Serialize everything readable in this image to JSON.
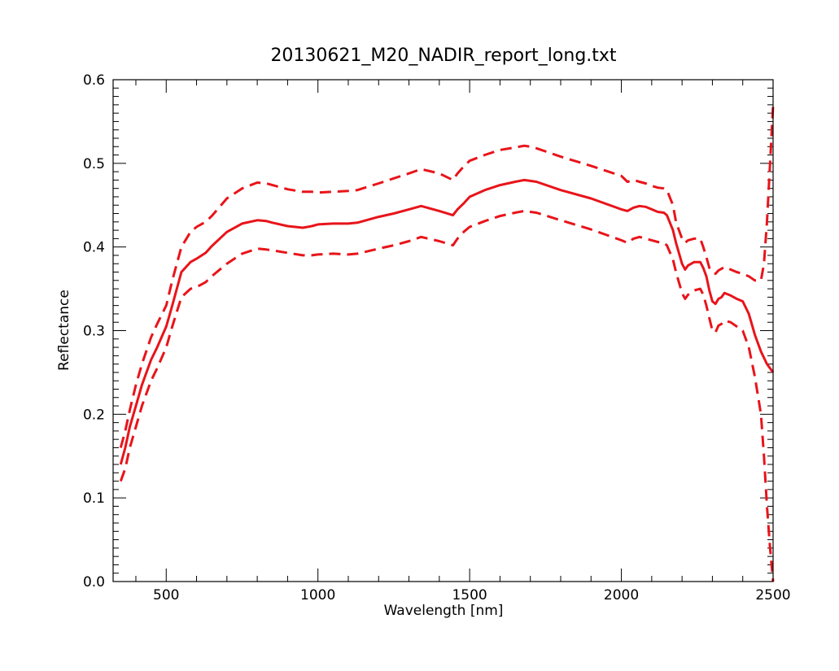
{
  "chart_data": {
    "type": "line",
    "title": "20130621_M20_NADIR_report_long.txt",
    "xlabel": "Wavelength [nm]",
    "ylabel": "Reflectance",
    "xlim": [
      325,
      2500
    ],
    "ylim": [
      0.0,
      0.6
    ],
    "x_ticks": [
      500,
      1000,
      1500,
      2000,
      2500
    ],
    "x_tick_labels": [
      "500",
      "1000",
      "1500",
      "2000",
      "2500"
    ],
    "y_ticks": [
      0.0,
      0.1,
      0.2,
      0.3,
      0.4,
      0.5,
      0.6
    ],
    "y_tick_labels": [
      "0.0",
      "0.1",
      "0.2",
      "0.3",
      "0.4",
      "0.5",
      "0.6"
    ],
    "grid": false,
    "line_color": "#e8141a",
    "series": [
      {
        "style": "solid",
        "x": [
          350,
          365,
          380,
          400,
          420,
          450,
          470,
          500,
          520,
          550,
          580,
          600,
          630,
          650,
          700,
          750,
          800,
          830,
          850,
          900,
          950,
          980,
          1000,
          1050,
          1100,
          1130,
          1200,
          1250,
          1300,
          1340,
          1400,
          1445,
          1460,
          1480,
          1500,
          1550,
          1600,
          1650,
          1680,
          1700,
          1720,
          1800,
          1900,
          2000,
          2020,
          2040,
          2060,
          2080,
          2100,
          2120,
          2140,
          2150,
          2170,
          2180,
          2200,
          2210,
          2220,
          2240,
          2260,
          2270,
          2280,
          2290,
          2300,
          2310,
          2320,
          2330,
          2340,
          2360,
          2380,
          2400,
          2420,
          2440,
          2460,
          2480,
          2500
        ],
        "y": [
          0.14,
          0.16,
          0.185,
          0.21,
          0.235,
          0.265,
          0.28,
          0.305,
          0.33,
          0.37,
          0.382,
          0.386,
          0.393,
          0.401,
          0.418,
          0.428,
          0.432,
          0.431,
          0.429,
          0.425,
          0.423,
          0.425,
          0.427,
          0.428,
          0.428,
          0.429,
          0.436,
          0.44,
          0.445,
          0.449,
          0.443,
          0.438,
          0.445,
          0.452,
          0.46,
          0.468,
          0.474,
          0.478,
          0.48,
          0.479,
          0.478,
          0.468,
          0.458,
          0.445,
          0.443,
          0.447,
          0.449,
          0.448,
          0.445,
          0.442,
          0.441,
          0.438,
          0.42,
          0.405,
          0.38,
          0.373,
          0.378,
          0.382,
          0.382,
          0.375,
          0.365,
          0.348,
          0.335,
          0.332,
          0.338,
          0.34,
          0.345,
          0.342,
          0.338,
          0.335,
          0.32,
          0.295,
          0.275,
          0.26,
          0.25
        ]
      },
      {
        "style": "dashed",
        "x": [
          350,
          365,
          380,
          400,
          420,
          450,
          470,
          500,
          520,
          550,
          580,
          600,
          630,
          650,
          700,
          750,
          800,
          830,
          850,
          900,
          950,
          980,
          1000,
          1050,
          1100,
          1130,
          1200,
          1250,
          1300,
          1340,
          1400,
          1445,
          1460,
          1480,
          1500,
          1550,
          1600,
          1650,
          1680,
          1700,
          1720,
          1800,
          1900,
          2000,
          2020,
          2040,
          2060,
          2080,
          2100,
          2120,
          2140,
          2150,
          2170,
          2180,
          2200,
          2210,
          2220,
          2240,
          2260,
          2270,
          2280,
          2290,
          2300,
          2310,
          2320,
          2330,
          2340,
          2360,
          2380,
          2400,
          2420,
          2440,
          2460,
          2470,
          2480,
          2490,
          2500
        ],
        "y": [
          0.16,
          0.18,
          0.205,
          0.235,
          0.26,
          0.292,
          0.308,
          0.33,
          0.36,
          0.4,
          0.418,
          0.424,
          0.43,
          0.437,
          0.458,
          0.47,
          0.477,
          0.476,
          0.474,
          0.469,
          0.466,
          0.466,
          0.465,
          0.466,
          0.467,
          0.468,
          0.476,
          0.482,
          0.488,
          0.493,
          0.488,
          0.48,
          0.488,
          0.496,
          0.503,
          0.51,
          0.516,
          0.519,
          0.521,
          0.52,
          0.518,
          0.508,
          0.497,
          0.485,
          0.478,
          0.48,
          0.478,
          0.476,
          0.473,
          0.471,
          0.47,
          0.468,
          0.45,
          0.43,
          0.41,
          0.405,
          0.408,
          0.41,
          0.41,
          0.4,
          0.388,
          0.375,
          0.37,
          0.368,
          0.372,
          0.374,
          0.376,
          0.373,
          0.37,
          0.368,
          0.365,
          0.36,
          0.36,
          0.38,
          0.43,
          0.5,
          0.57
        ]
      },
      {
        "style": "dashed",
        "x": [
          350,
          365,
          380,
          400,
          420,
          450,
          470,
          500,
          520,
          550,
          580,
          600,
          630,
          650,
          700,
          750,
          800,
          830,
          850,
          900,
          950,
          980,
          1000,
          1050,
          1100,
          1130,
          1200,
          1250,
          1300,
          1340,
          1400,
          1445,
          1460,
          1480,
          1500,
          1550,
          1600,
          1650,
          1680,
          1700,
          1720,
          1800,
          1900,
          2000,
          2020,
          2040,
          2060,
          2080,
          2100,
          2120,
          2140,
          2150,
          2170,
          2180,
          2200,
          2210,
          2220,
          2240,
          2260,
          2270,
          2280,
          2290,
          2300,
          2310,
          2320,
          2330,
          2340,
          2360,
          2380,
          2400,
          2420,
          2440,
          2460,
          2470,
          2480,
          2490,
          2500
        ],
        "y": [
          0.12,
          0.135,
          0.16,
          0.185,
          0.21,
          0.24,
          0.255,
          0.28,
          0.305,
          0.34,
          0.35,
          0.352,
          0.358,
          0.365,
          0.38,
          0.392,
          0.398,
          0.397,
          0.396,
          0.393,
          0.39,
          0.39,
          0.391,
          0.392,
          0.391,
          0.392,
          0.398,
          0.402,
          0.407,
          0.412,
          0.407,
          0.402,
          0.41,
          0.418,
          0.424,
          0.431,
          0.437,
          0.441,
          0.443,
          0.442,
          0.441,
          0.432,
          0.421,
          0.408,
          0.405,
          0.41,
          0.412,
          0.41,
          0.408,
          0.406,
          0.405,
          0.402,
          0.385,
          0.37,
          0.345,
          0.338,
          0.343,
          0.348,
          0.35,
          0.343,
          0.33,
          0.315,
          0.3,
          0.298,
          0.306,
          0.308,
          0.312,
          0.31,
          0.305,
          0.3,
          0.28,
          0.245,
          0.2,
          0.15,
          0.09,
          0.04,
          0.0
        ]
      }
    ]
  }
}
